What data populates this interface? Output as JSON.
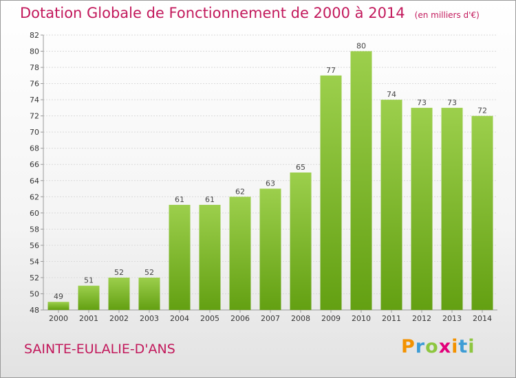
{
  "header": {
    "title": "Dotation Globale de Fonctionnement de 2000 à 2014",
    "unit": "(en milliers d'€)"
  },
  "footer": {
    "commune": "SAINTE-EULALIE-D'ANS",
    "logo": {
      "letters": [
        "P",
        "r",
        "o",
        "x",
        "i",
        "t",
        "i"
      ],
      "colors": [
        "#f39200",
        "#3d9cd5",
        "#8dc63f",
        "#e2007a",
        "#f39200",
        "#3d9cd5",
        "#8dc63f"
      ]
    }
  },
  "chart_data": {
    "type": "bar",
    "categories": [
      "2000",
      "2001",
      "2002",
      "2003",
      "2004",
      "2005",
      "2006",
      "2007",
      "2008",
      "2009",
      "2010",
      "2011",
      "2012",
      "2013",
      "2014"
    ],
    "values": [
      49,
      51,
      52,
      52,
      61,
      61,
      62,
      63,
      65,
      77,
      80,
      74,
      73,
      73,
      72
    ],
    "ylim": [
      48,
      82
    ],
    "yticks": [
      48,
      50,
      52,
      54,
      56,
      58,
      60,
      62,
      64,
      66,
      68,
      70,
      72,
      74,
      76,
      78,
      80,
      82
    ],
    "grid": true,
    "bar_color_top": "#9ccf4c",
    "bar_color_bottom": "#63a012"
  }
}
